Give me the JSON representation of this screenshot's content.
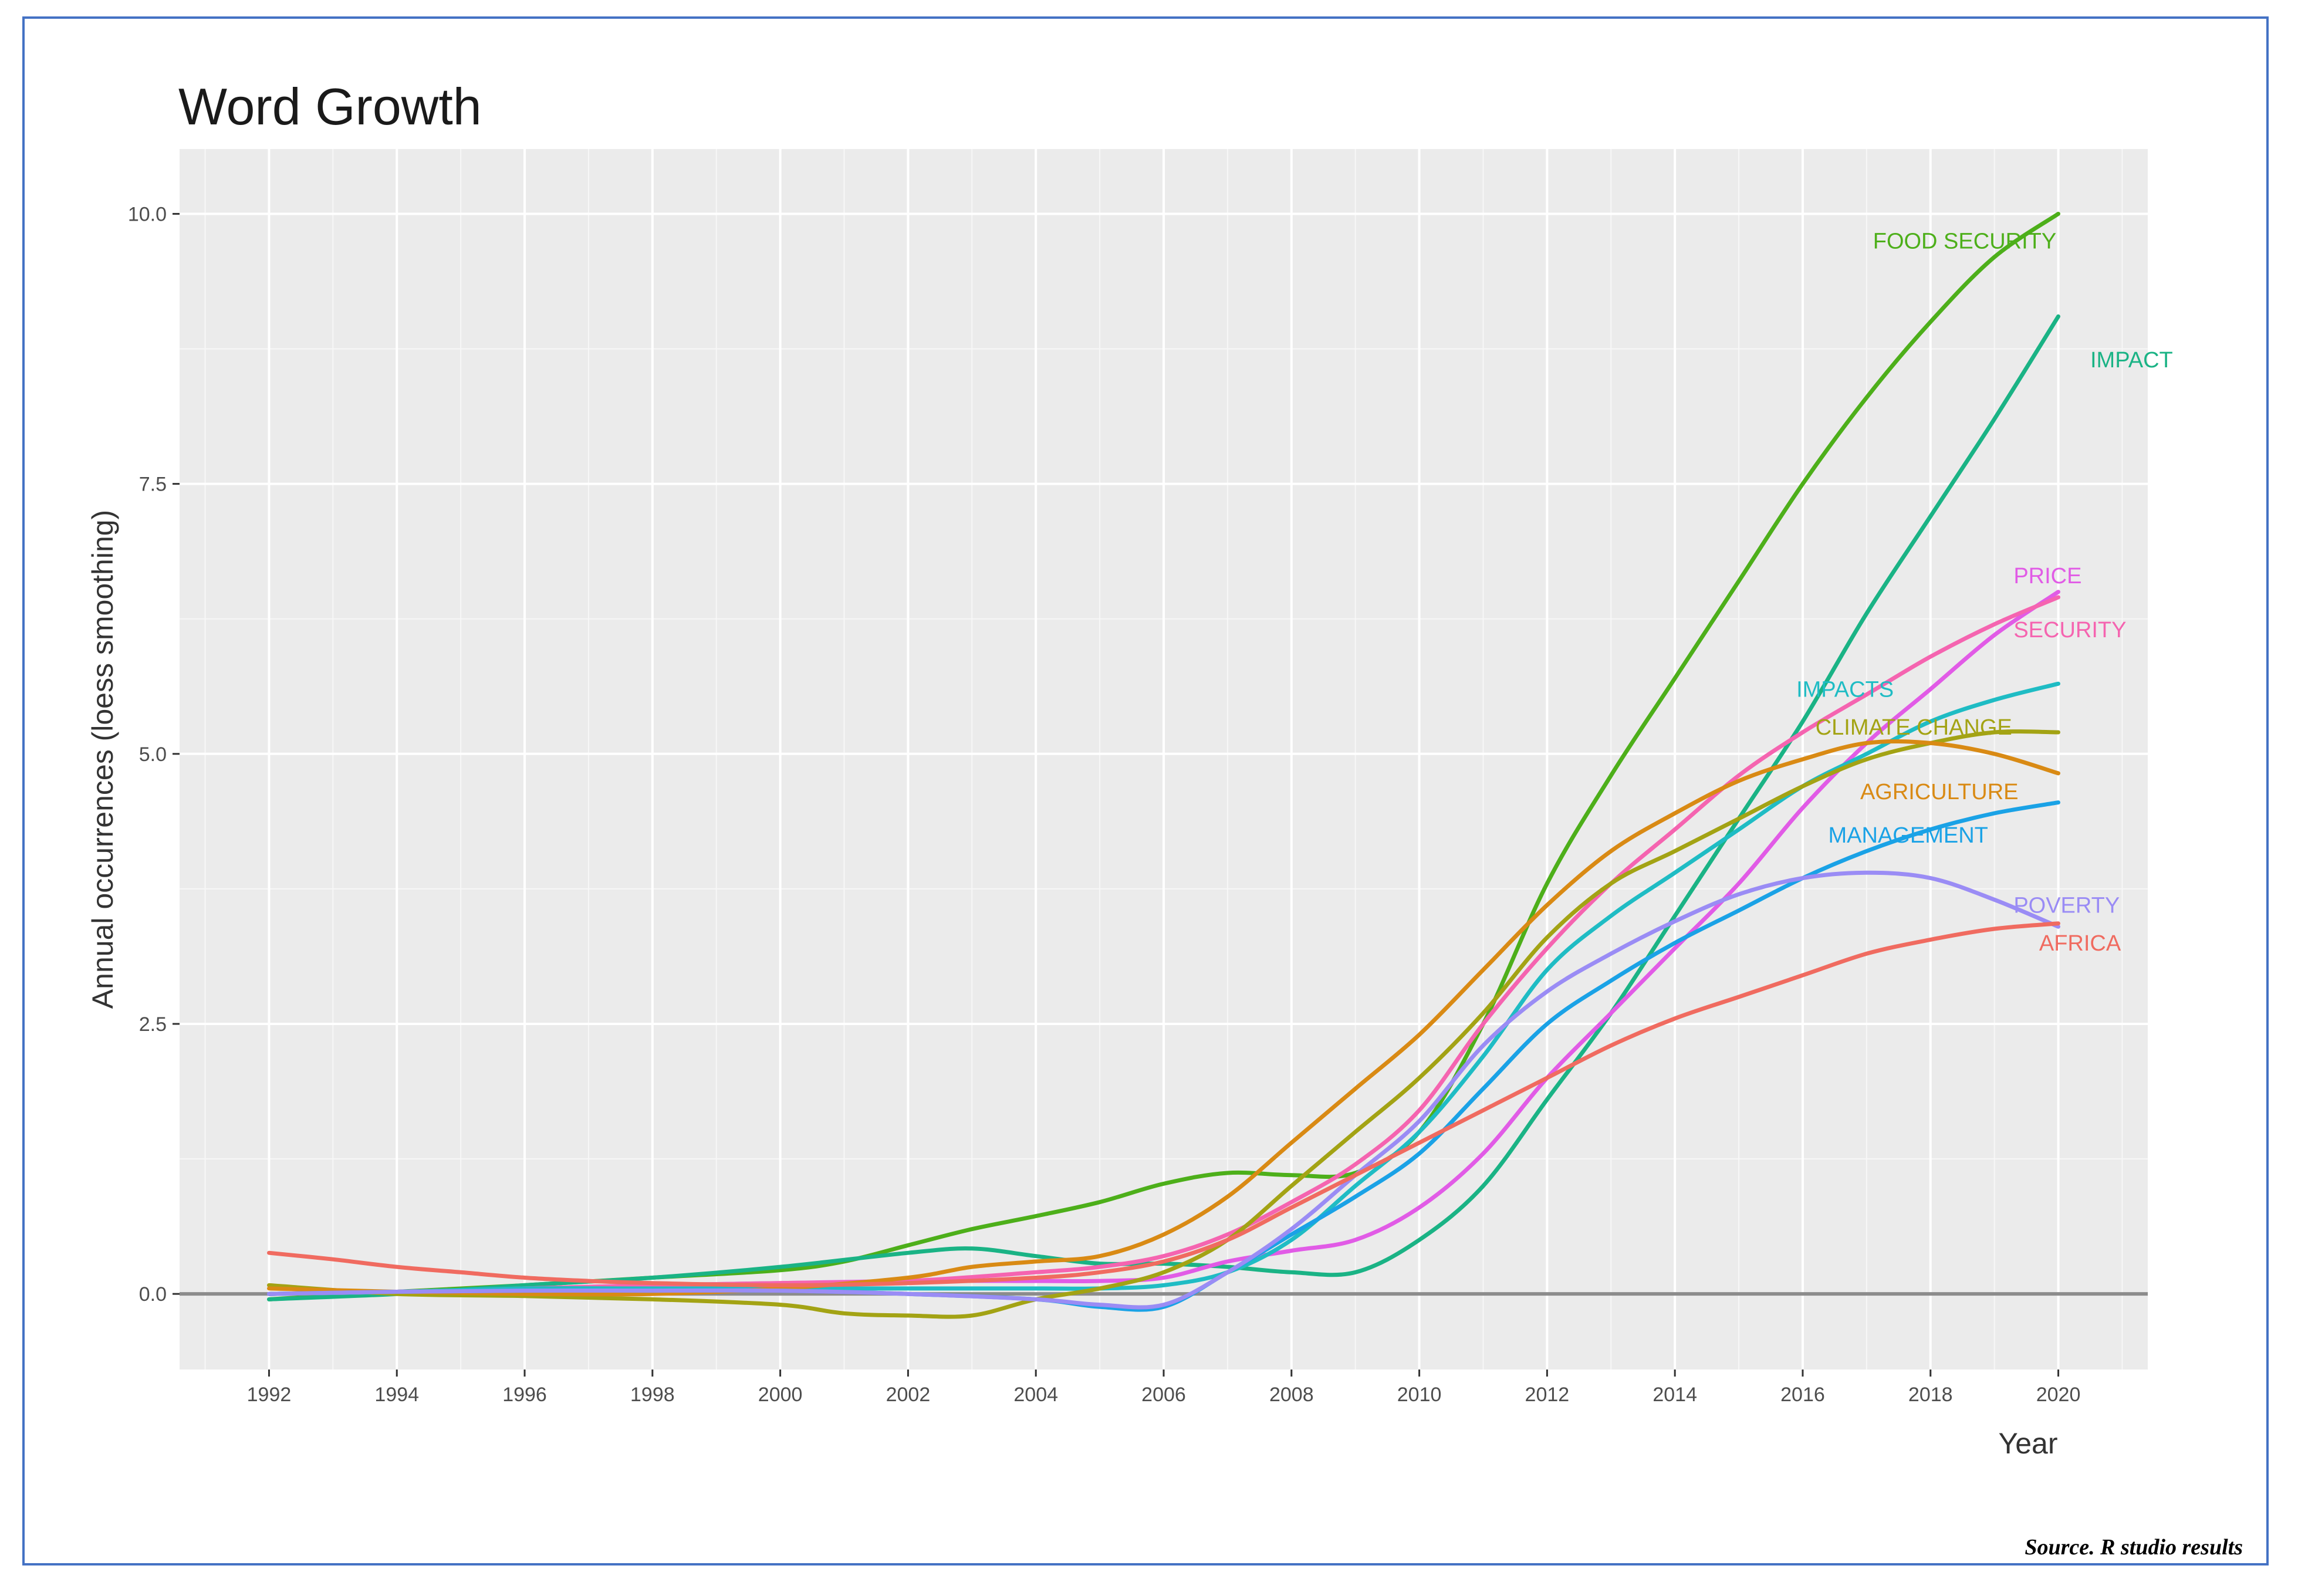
{
  "chart_data": {
    "type": "line",
    "title": "Word Growth",
    "xlabel": "Year",
    "ylabel": "Annual occurrences (loess smoothing)",
    "xlim": [
      1990.6,
      2021.4
    ],
    "ylim": [
      -0.7,
      10.6
    ],
    "x_ticks": [
      1992,
      1994,
      1996,
      1998,
      2000,
      2002,
      2004,
      2006,
      2008,
      2010,
      2012,
      2014,
      2016,
      2018,
      2020
    ],
    "x_tick_labels": [
      "1992",
      "1994",
      "1996",
      "1998",
      "2000",
      "2002",
      "2004",
      "2006",
      "2008",
      "2010",
      "2012",
      "2014",
      "2016",
      "2018",
      "2020"
    ],
    "y_ticks": [
      0,
      2.5,
      5,
      7.5,
      10
    ],
    "y_tick_labels": [
      "0.0",
      "2.5",
      "5.0",
      "7.5",
      "10.0"
    ],
    "grid": true,
    "legend": "none",
    "source": "Source. R studio results",
    "series": [
      {
        "name": "FOOD SECURITY",
        "color": "#4daf1a",
        "x": [
          1992,
          1994,
          1996,
          1998,
          2000,
          2001,
          2002,
          2003,
          2004,
          2005,
          2006,
          2007,
          2008,
          2009,
          2010,
          2011,
          2012,
          2013,
          2014,
          2015,
          2016,
          2017,
          2018,
          2019,
          2020
        ],
        "y": [
          -0.05,
          0.02,
          0.08,
          0.15,
          0.22,
          0.3,
          0.45,
          0.6,
          0.72,
          0.85,
          1.02,
          1.12,
          1.1,
          1.12,
          1.5,
          2.5,
          3.8,
          4.8,
          5.7,
          6.6,
          7.5,
          8.3,
          9.0,
          9.6,
          10.0
        ],
        "label_anchor": [
          2017.1,
          9.75
        ]
      },
      {
        "name": "IMPACT",
        "color": "#1ab385",
        "x": [
          1992,
          1994,
          1996,
          1998,
          2000,
          2002,
          2003,
          2004,
          2005,
          2006,
          2007,
          2008,
          2009,
          2010,
          2011,
          2012,
          2013,
          2014,
          2015,
          2016,
          2017,
          2018,
          2019,
          2020
        ],
        "y": [
          -0.05,
          0.0,
          0.08,
          0.15,
          0.25,
          0.38,
          0.42,
          0.35,
          0.28,
          0.28,
          0.25,
          0.2,
          0.2,
          0.5,
          1.0,
          1.8,
          2.6,
          3.5,
          4.4,
          5.3,
          6.3,
          7.2,
          8.1,
          9.05
        ],
        "label_anchor": [
          2020.5,
          8.65
        ]
      },
      {
        "name": "PRICE",
        "color": "#e15be6",
        "x": [
          1992,
          1994,
          1996,
          1998,
          2000,
          2002,
          2004,
          2005,
          2006,
          2007,
          2008,
          2009,
          2010,
          2011,
          2012,
          2013,
          2014,
          2015,
          2016,
          2017,
          2018,
          2019,
          2020
        ],
        "y": [
          0.0,
          0.02,
          0.05,
          0.08,
          0.1,
          0.12,
          0.12,
          0.12,
          0.15,
          0.3,
          0.4,
          0.5,
          0.8,
          1.3,
          2.0,
          2.6,
          3.2,
          3.8,
          4.5,
          5.1,
          5.6,
          6.1,
          6.5
        ],
        "label_anchor": [
          2019.3,
          6.65
        ]
      },
      {
        "name": "SECURITY",
        "color": "#f564b0",
        "x": [
          1992,
          1994,
          1996,
          1998,
          2000,
          2002,
          2004,
          2005,
          2006,
          2007,
          2008,
          2009,
          2010,
          2011,
          2012,
          2013,
          2014,
          2015,
          2016,
          2017,
          2018,
          2019,
          2020
        ],
        "y": [
          0.0,
          0.02,
          0.05,
          0.08,
          0.1,
          0.12,
          0.2,
          0.25,
          0.35,
          0.55,
          0.85,
          1.2,
          1.7,
          2.5,
          3.2,
          3.8,
          4.3,
          4.8,
          5.2,
          5.55,
          5.9,
          6.2,
          6.45
        ],
        "label_anchor": [
          2019.3,
          6.15
        ]
      },
      {
        "name": "IMPACTS",
        "color": "#1fbcc4",
        "x": [
          1992,
          1994,
          1996,
          1998,
          2000,
          2002,
          2004,
          2005,
          2006,
          2007,
          2008,
          2009,
          2010,
          2011,
          2012,
          2013,
          2014,
          2015,
          2016,
          2017,
          2018,
          2019,
          2020
        ],
        "y": [
          0.0,
          0.02,
          0.05,
          0.05,
          0.05,
          0.05,
          0.05,
          0.05,
          0.08,
          0.2,
          0.5,
          1.0,
          1.5,
          2.2,
          3.0,
          3.5,
          3.9,
          4.3,
          4.7,
          5.0,
          5.3,
          5.5,
          5.65
        ],
        "label_anchor": [
          2015.9,
          5.6
        ]
      },
      {
        "name": "CLIMATE CHANGE",
        "color": "#a3a314",
        "x": [
          1992,
          1994,
          1996,
          1998,
          2000,
          2001,
          2002,
          2003,
          2004,
          2005,
          2006,
          2007,
          2008,
          2009,
          2010,
          2011,
          2012,
          2013,
          2014,
          2015,
          2016,
          2017,
          2018,
          2019,
          2020
        ],
        "y": [
          0.08,
          0.0,
          -0.02,
          -0.05,
          -0.1,
          -0.18,
          -0.2,
          -0.2,
          -0.05,
          0.05,
          0.2,
          0.5,
          1.0,
          1.5,
          2.0,
          2.6,
          3.3,
          3.8,
          4.1,
          4.4,
          4.7,
          4.95,
          5.1,
          5.2,
          5.2
        ],
        "label_anchor": [
          2016.2,
          5.25
        ]
      },
      {
        "name": "AGRICULTURE",
        "color": "#d98a14",
        "x": [
          1992,
          1994,
          1996,
          1998,
          2000,
          2002,
          2003,
          2004,
          2005,
          2006,
          2007,
          2008,
          2009,
          2010,
          2011,
          2012,
          2013,
          2014,
          2015,
          2016,
          2017,
          2018,
          2019,
          2020
        ],
        "y": [
          0.05,
          0.02,
          0.0,
          0.0,
          0.05,
          0.15,
          0.25,
          0.3,
          0.35,
          0.55,
          0.9,
          1.4,
          1.9,
          2.4,
          3.0,
          3.6,
          4.1,
          4.45,
          4.75,
          4.95,
          5.1,
          5.1,
          5.0,
          4.82
        ],
        "label_anchor": [
          2016.9,
          4.65
        ]
      },
      {
        "name": "MANAGEMENT",
        "color": "#1aa2e6",
        "x": [
          1992,
          1994,
          1996,
          1998,
          2000,
          2002,
          2004,
          2005,
          2006,
          2007,
          2008,
          2009,
          2010,
          2011,
          2012,
          2013,
          2014,
          2015,
          2016,
          2017,
          2018,
          2019,
          2020
        ],
        "y": [
          0.0,
          0.02,
          0.03,
          0.03,
          0.03,
          0.0,
          -0.05,
          -0.12,
          -0.12,
          0.2,
          0.55,
          0.9,
          1.3,
          1.9,
          2.5,
          2.9,
          3.25,
          3.55,
          3.85,
          4.1,
          4.3,
          4.45,
          4.55
        ],
        "label_anchor": [
          2016.4,
          4.25
        ]
      },
      {
        "name": "POVERTY",
        "color": "#9a8cf5",
        "x": [
          1992,
          1994,
          1996,
          1998,
          2000,
          2002,
          2004,
          2005,
          2006,
          2007,
          2008,
          2009,
          2010,
          2011,
          2012,
          2013,
          2014,
          2015,
          2016,
          2017,
          2018,
          2019,
          2020
        ],
        "y": [
          0.0,
          0.02,
          0.03,
          0.03,
          0.03,
          0.0,
          -0.05,
          -0.1,
          -0.1,
          0.2,
          0.6,
          1.1,
          1.6,
          2.3,
          2.8,
          3.15,
          3.45,
          3.7,
          3.85,
          3.9,
          3.85,
          3.65,
          3.4
        ],
        "label_anchor": [
          2019.3,
          3.6
        ]
      },
      {
        "name": "AFRICA",
        "color": "#f06b60",
        "x": [
          1992,
          1993,
          1994,
          1995,
          1996,
          1997,
          1998,
          2000,
          2002,
          2004,
          2005,
          2006,
          2007,
          2008,
          2009,
          2010,
          2011,
          2012,
          2013,
          2014,
          2015,
          2016,
          2017,
          2018,
          2019,
          2020
        ],
        "y": [
          0.38,
          0.32,
          0.25,
          0.2,
          0.15,
          0.12,
          0.1,
          0.08,
          0.1,
          0.15,
          0.2,
          0.3,
          0.5,
          0.8,
          1.1,
          1.4,
          1.7,
          2.0,
          2.3,
          2.55,
          2.75,
          2.95,
          3.15,
          3.28,
          3.38,
          3.43
        ],
        "label_anchor": [
          2019.7,
          3.25
        ]
      }
    ]
  }
}
